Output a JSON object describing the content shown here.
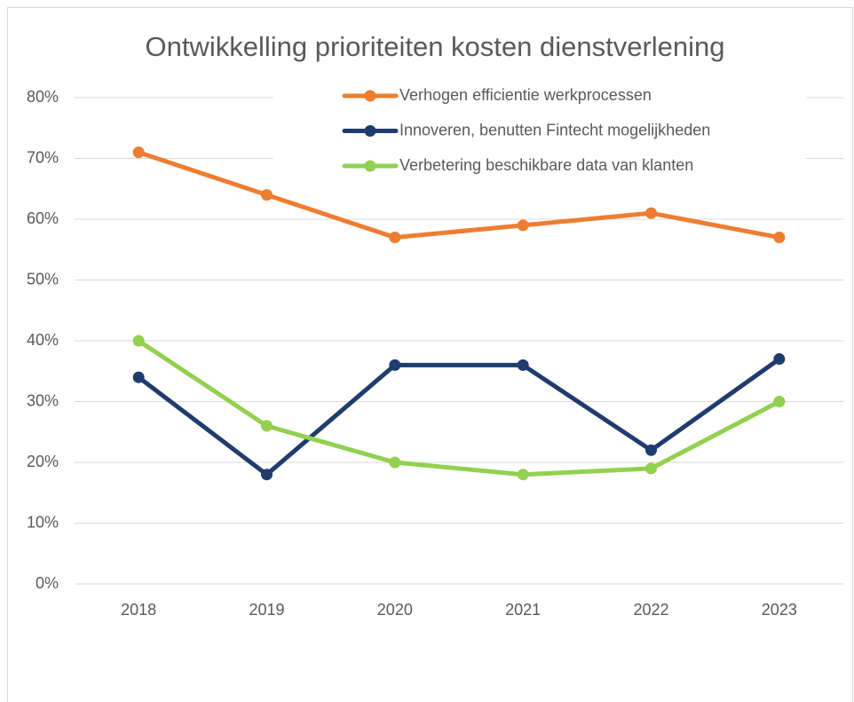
{
  "chart_data": {
    "type": "line",
    "title": "Ontwikkelling prioriteiten kosten dienstverlening",
    "categories": [
      "2018",
      "2019",
      "2020",
      "2021",
      "2022",
      "2023"
    ],
    "series": [
      {
        "name": "Verhogen efficientie werkprocessen",
        "color": "#ed7d31",
        "values": [
          71,
          64,
          57,
          59,
          61,
          57
        ]
      },
      {
        "name": "Innoveren, benutten Fintecht mogelijkheden",
        "color": "#1f3c6e",
        "values": [
          34,
          18,
          36,
          36,
          22,
          37
        ]
      },
      {
        "name": "Verbetering beschikbare data van klanten",
        "color": "#92d050",
        "values": [
          40,
          26,
          20,
          18,
          19,
          30
        ]
      }
    ],
    "ylim": [
      0,
      80
    ],
    "yticks": [
      {
        "value": 0,
        "label": "0%"
      },
      {
        "value": 10,
        "label": "10%"
      },
      {
        "value": 20,
        "label": "20%"
      },
      {
        "value": 30,
        "label": "30%"
      },
      {
        "value": 40,
        "label": "40%"
      },
      {
        "value": 50,
        "label": "50%"
      },
      {
        "value": 60,
        "label": "60%"
      },
      {
        "value": 70,
        "label": "70%"
      },
      {
        "value": 80,
        "label": "80%"
      }
    ],
    "grid": true,
    "legend": "top-right"
  }
}
